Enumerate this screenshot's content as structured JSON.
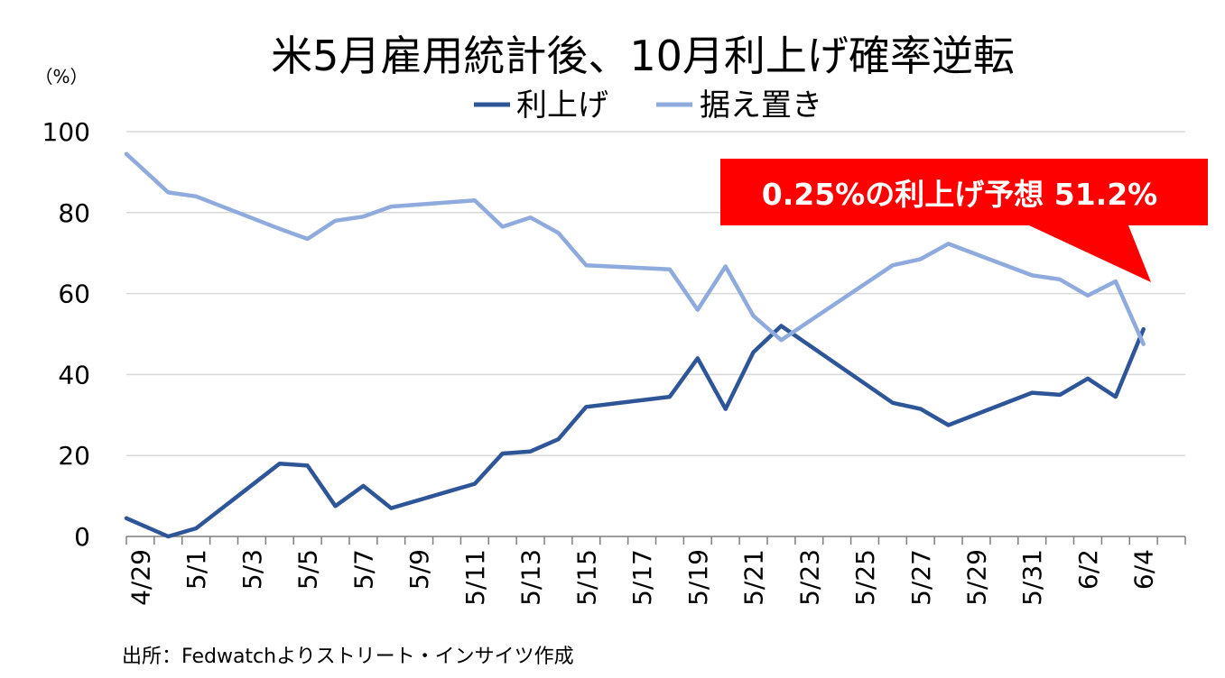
{
  "chart_data": {
    "type": "line",
    "title": "米5月雇用統計後、10月利上げ確率逆転",
    "unit_label": "（%）",
    "ylim": [
      0,
      100
    ],
    "yticks": [
      "0",
      "20",
      "40",
      "60",
      "80",
      "100"
    ],
    "xlim": [
      0,
      38
    ],
    "x_tick_labels": [
      "4/29",
      "5/1",
      "5/3",
      "5/5",
      "5/7",
      "5/9",
      "5/11",
      "5/13",
      "5/15",
      "5/17",
      "5/19",
      "5/21",
      "5/23",
      "5/25",
      "5/27",
      "5/29",
      "5/31",
      "6/2",
      "6/4"
    ],
    "grid": "horizontal",
    "legend_position": "top",
    "series": [
      {
        "name": "利上げ",
        "color": "#2E5597",
        "points": [
          [
            0,
            4.5
          ],
          [
            1.5,
            0
          ],
          [
            2.5,
            2
          ],
          [
            5.5,
            18
          ],
          [
            6.5,
            17.5
          ],
          [
            7.5,
            7.5
          ],
          [
            8.5,
            12.5
          ],
          [
            9.5,
            7
          ],
          [
            12.5,
            13
          ],
          [
            13.5,
            20.5
          ],
          [
            14.5,
            21
          ],
          [
            15.5,
            24
          ],
          [
            16.5,
            32
          ],
          [
            19.5,
            34.5
          ],
          [
            20.5,
            44
          ],
          [
            21.5,
            31.5
          ],
          [
            22.5,
            45.5
          ],
          [
            23.5,
            52
          ],
          [
            27.5,
            33
          ],
          [
            28.5,
            31.5
          ],
          [
            29.5,
            27.5
          ],
          [
            32.5,
            35.5
          ],
          [
            33.5,
            35
          ],
          [
            34.5,
            39
          ],
          [
            35.5,
            34.5
          ],
          [
            36.5,
            51.2
          ]
        ]
      },
      {
        "name": "据え置き",
        "color": "#8FAADC",
        "points": [
          [
            0,
            94.5
          ],
          [
            1.5,
            85
          ],
          [
            2.5,
            84
          ],
          [
            5.5,
            76
          ],
          [
            6.5,
            73.5
          ],
          [
            7.5,
            78
          ],
          [
            8.5,
            79
          ],
          [
            9.5,
            81.5
          ],
          [
            12.5,
            83
          ],
          [
            13.5,
            76.5
          ],
          [
            14.5,
            78.8
          ],
          [
            15.5,
            75
          ],
          [
            16.5,
            67
          ],
          [
            19.5,
            66
          ],
          [
            20.5,
            56
          ],
          [
            21.5,
            66.7
          ],
          [
            22.5,
            54.5
          ],
          [
            23.5,
            48.5
          ],
          [
            27.5,
            67
          ],
          [
            28.5,
            68.5
          ],
          [
            29.5,
            72.3
          ],
          [
            32.5,
            64.5
          ],
          [
            33.5,
            63.5
          ],
          [
            34.5,
            59.5
          ],
          [
            35.5,
            63
          ],
          [
            36.5,
            47.5
          ]
        ]
      }
    ],
    "annotation": "0.25%の利上げ予想 51.2%",
    "annotation_color": "#FF0000"
  },
  "source": "出所：Fedwatchよりストリート・インサイツ作成"
}
